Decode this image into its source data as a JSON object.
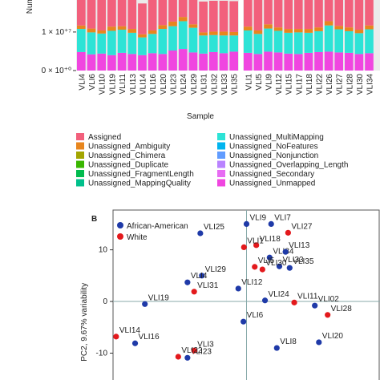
{
  "chart_data": [
    {
      "type": "stacked-bar",
      "y_label": "Number of reads",
      "x_label": "Sample",
      "facet_categories": [
        [
          "VLI4",
          "VLI6",
          "VLI10",
          "VLI19",
          "VLI11",
          "VLI13",
          "VLI14",
          "VLI16",
          "VLI20",
          "VLI23",
          "VLI24",
          "VLI29",
          "VLI31",
          "VLI32",
          "VLI33",
          "VLI35"
        ],
        [
          "VLI1",
          "VLI5",
          "VLI9",
          "VLI12",
          "VLI15",
          "VLI17",
          "VLI18",
          "VLI22",
          "VLI26",
          "VLI27",
          "VLI28",
          "VLI30",
          "VLI34"
        ]
      ],
      "ylim": [
        0,
        18300000
      ],
      "yticks": [
        {
          "value": 0,
          "label": "0 × 10⁺⁰"
        },
        {
          "value": 10000000,
          "label": "1 × 10⁺⁷"
        }
      ],
      "series": [
        {
          "name": "Assigned",
          "color": "#f2607c",
          "values": [
            [
              8000000.0,
              8000000.0,
              8000000.0,
              8000000.0,
              8000000.0,
              8000000.0,
              8000000.0,
              8000000.0,
              8000000.0,
              8000000.0,
              8000000.0,
              8000000.0,
              8000000.0,
              8000000.0,
              8000000.0,
              8000000.0
            ],
            [
              8000000.0,
              8000000.0,
              8000000.0,
              8000000.0,
              8000000.0,
              8000000.0,
              8000000.0,
              8000000.0,
              8000000.0,
              8000000.0,
              8000000.0,
              8000000.0,
              8000000.0
            ]
          ]
        },
        {
          "name": "Unassigned_Ambiguity",
          "color": "#e8861e",
          "values": [
            [
              900000.0,
              1000000.0,
              800000.0,
              1100000.0,
              900000.0,
              1000000.0,
              800000.0,
              900000.0,
              1000000.0,
              1200000.0,
              1100000.0,
              900000.0,
              800000.0,
              900000.0,
              1000000.0,
              900000.0
            ],
            [
              1000000.0,
              900000.0,
              1100000.0,
              900000.0,
              1000000.0,
              900000.0,
              1000000.0,
              1000000.0,
              1100000.0,
              900000.0,
              1000000.0,
              900000.0,
              1000000.0
            ]
          ]
        },
        {
          "name": "Unassigned_Chimera",
          "color": "#a3a500",
          "values": [
            [
              0,
              0,
              0,
              0,
              0,
              0,
              0,
              0,
              0,
              0,
              0,
              0,
              0,
              0,
              0,
              0
            ],
            [
              0,
              0,
              0,
              0,
              0,
              0,
              0,
              0,
              0,
              0,
              0,
              0,
              0
            ]
          ]
        },
        {
          "name": "Unassigned_Duplicate",
          "color": "#39b600",
          "values": [
            [
              0,
              0,
              0,
              0,
              0,
              0,
              0,
              0,
              0,
              0,
              0,
              0,
              0,
              0,
              0,
              0
            ],
            [
              0,
              0,
              0,
              0,
              0,
              0,
              0,
              0,
              0,
              0,
              0,
              0,
              0
            ]
          ]
        },
        {
          "name": "Unassigned_FragmentLength",
          "color": "#00bb4e",
          "values": [
            [
              0,
              0,
              0,
              0,
              0,
              0,
              0,
              0,
              0,
              0,
              0,
              0,
              0,
              0,
              0,
              0
            ],
            [
              0,
              0,
              0,
              0,
              0,
              0,
              0,
              0,
              0,
              0,
              0,
              0,
              0
            ]
          ]
        },
        {
          "name": "Unassigned_MappingQuality",
          "color": "#00c08b",
          "values": [
            [
              0,
              0,
              0,
              0,
              0,
              0,
              0,
              0,
              0,
              0,
              0,
              0,
              0,
              0,
              0,
              0
            ],
            [
              0,
              0,
              0,
              0,
              0,
              0,
              0,
              0,
              0,
              0,
              0,
              0,
              0
            ]
          ]
        },
        {
          "name": "Unassigned_MultiMapping",
          "color": "#2de3d6",
          "values": [
            [
              6000000.0,
              5700000.0,
              5200000.0,
              6300000.0,
              6000000.0,
              5500000.0,
              4600000.0,
              5000000.0,
              6500000.0,
              6300000.0,
              7200000.0,
              6400000.0,
              4700000.0,
              4400000.0,
              4600000.0,
              4200000.0
            ],
            [
              5800000.0,
              5200000.0,
              6000000.0,
              5600000.0,
              5400000.0,
              5600000.0,
              5200000.0,
              5400000.0,
              6800000.0,
              6000000.0,
              5600000.0,
              5400000.0,
              6200000.0
            ]
          ]
        },
        {
          "name": "Unassigned_NoFeatures",
          "color": "#00b4ef",
          "values": [
            [
              0,
              0,
              0,
              0,
              0,
              0,
              0,
              0,
              0,
              0,
              0,
              0,
              0,
              0,
              0,
              0
            ],
            [
              0,
              0,
              0,
              0,
              0,
              0,
              0,
              0,
              0,
              0,
              0,
              0,
              0
            ]
          ]
        },
        {
          "name": "Unassigned_Nonjunction",
          "color": "#619cff",
          "values": [
            [
              0,
              0,
              0,
              0,
              0,
              0,
              0,
              0,
              0,
              0,
              0,
              0,
              0,
              0,
              0,
              0
            ],
            [
              0,
              0,
              0,
              0,
              0,
              0,
              0,
              0,
              0,
              0,
              0,
              0,
              0
            ]
          ]
        },
        {
          "name": "Unassigned_Overlapping_Length",
          "color": "#b983ff",
          "values": [
            [
              0,
              0,
              0,
              0,
              0,
              0,
              0,
              0,
              0,
              0,
              0,
              0,
              0,
              0,
              0,
              0
            ],
            [
              0,
              0,
              0,
              0,
              0,
              0,
              0,
              0,
              0,
              0,
              0,
              0,
              0
            ]
          ]
        },
        {
          "name": "Unassigned_Secondary",
          "color": "#e76bf3",
          "values": [
            [
              0,
              0,
              0,
              0,
              0,
              0,
              0,
              0,
              0,
              0,
              0,
              0,
              0,
              0,
              0,
              0
            ],
            [
              0,
              0,
              0,
              0,
              0,
              0,
              0,
              0,
              0,
              0,
              0,
              0,
              0
            ]
          ]
        },
        {
          "name": "Unassigned_Unmapped",
          "color": "#f046e0",
          "values": [
            [
              4800000.0,
              4200000.0,
              4400000.0,
              4000000.0,
              4600000.0,
              4300000.0,
              4000000.0,
              4500000.0,
              4300000.0,
              5200000.0,
              5600000.0,
              4700000.0,
              4400000.0,
              4800000.0,
              4500000.0,
              4900000.0
            ],
            [
              4600000.0,
              4300000.0,
              4900000.0,
              4700000.0,
              4400000.0,
              4300000.0,
              4600000.0,
              4800000.0,
              4900000.0,
              4700000.0,
              4600000.0,
              4300000.0,
              4500000.0
            ]
          ]
        }
      ]
    },
    {
      "type": "scatter",
      "panel": "B",
      "y_label": "PC2, 9.67% variability",
      "xlim": [
        -26,
        26
      ],
      "ylim": [
        -15.2,
        17.7
      ],
      "yticks": [
        -10,
        0,
        10
      ],
      "zero_lines": true,
      "series": [
        {
          "name": "African-American",
          "color": "#1f3aa8",
          "labels": [
            "VLI25",
            "VLI9",
            "VLI7",
            "VLI34",
            "VLI13",
            "VLI33",
            "VLI35",
            "VLI29",
            "VLI4",
            "VLI12",
            "VLI19",
            "VLI24",
            "VLI02",
            "VLI6",
            "VLI16",
            "VLI23",
            "VLI8",
            "VLI20"
          ],
          "x": [
            -9.0,
            0,
            4.8,
            4.5,
            7.6,
            6.4,
            8.4,
            -8.7,
            -11.5,
            -1.6,
            -19.8,
            3.6,
            13.3,
            -0.6,
            -21.7,
            -11.5,
            5.9,
            14.1
          ],
          "values": [
            13.2,
            15.0,
            15.0,
            8.5,
            9.6,
            6.8,
            6.5,
            5.0,
            3.7,
            2.5,
            -0.5,
            0.2,
            -0.8,
            -3.9,
            -8.1,
            -10.9,
            -9.0,
            -7.9
          ]
        },
        {
          "name": "White",
          "color": "#e3191c",
          "labels": [
            "VLI27",
            "VLI18",
            "VLI1",
            "VLI5",
            "VLI30",
            "VLI31",
            "VLI11",
            "VLI28",
            "VLI14",
            "VLI3",
            "VLI22"
          ],
          "x": [
            8.1,
            1.9,
            -0.5,
            1.6,
            3.1,
            -10.2,
            9.3,
            15.8,
            -25.4,
            -10.2,
            -13.3
          ],
          "values": [
            13.3,
            10.9,
            10.5,
            6.7,
            6.2,
            1.9,
            -0.2,
            -2.6,
            -6.8,
            -9.5,
            -10.7
          ]
        }
      ]
    }
  ]
}
